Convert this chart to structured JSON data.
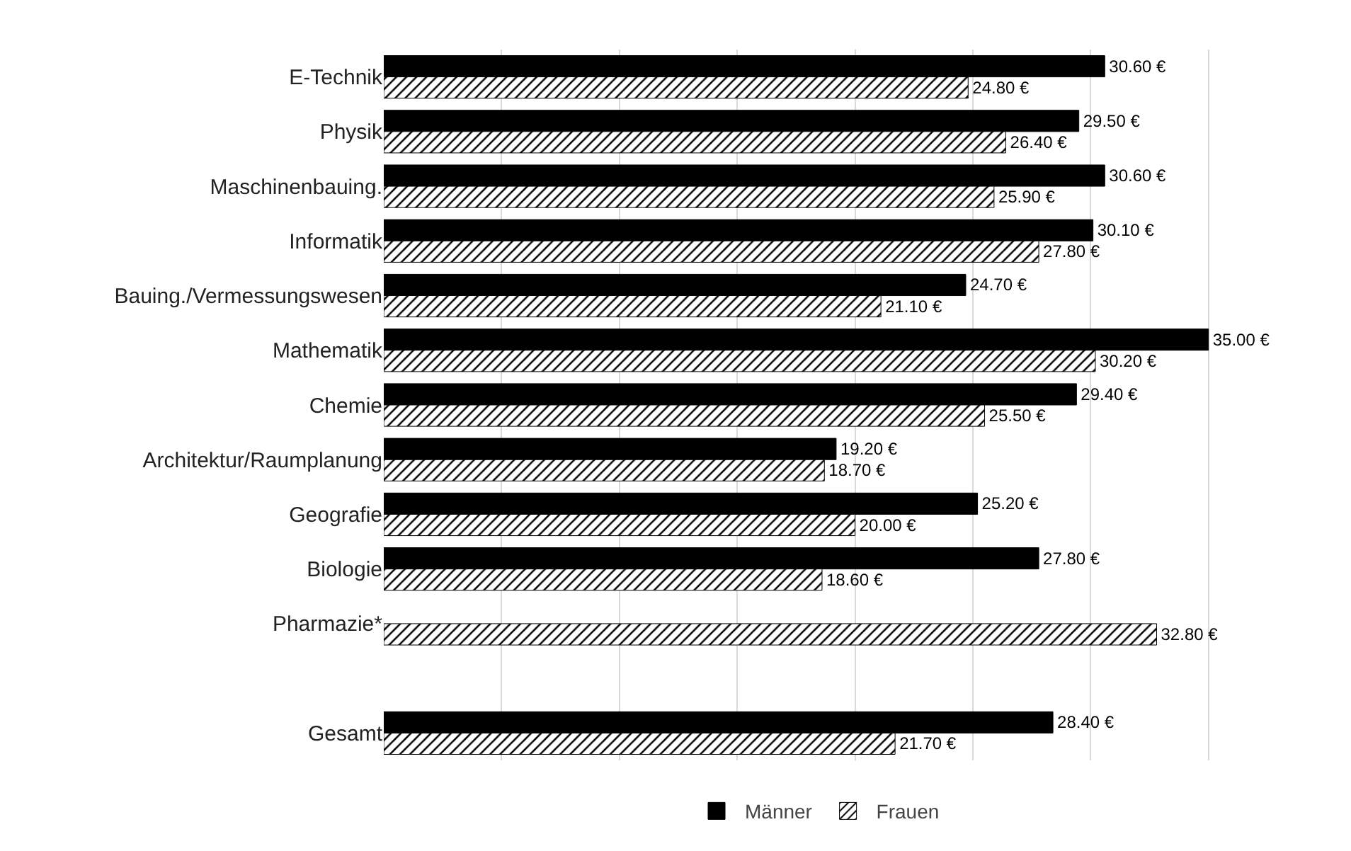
{
  "chart_data": {
    "type": "bar",
    "orientation": "horizontal",
    "categories": [
      "E-Technik",
      "Physik",
      "Maschinenbauing.",
      "Informatik",
      "Bauing./Vermessungswesen",
      "Mathematik",
      "Chemie",
      "Architektur/Raumplanung",
      "Geografie",
      "Biologie",
      "Pharmazie*",
      null,
      "Gesamt"
    ],
    "series": [
      {
        "name": "Männer",
        "color": "#000000",
        "values": [
          30.6,
          29.5,
          30.6,
          30.1,
          24.7,
          35.0,
          29.4,
          19.2,
          25.2,
          27.8,
          null,
          null,
          28.4
        ],
        "value_labels": [
          "30.60 €",
          "29.50 €",
          "30.60 €",
          "30.10 €",
          "24.70 €",
          "35.00 €",
          "29.40 €",
          "19.20 €",
          "25.20 €",
          "27.80 €",
          null,
          null,
          "28.40 €"
        ]
      },
      {
        "name": "Frauen",
        "color": "#000000",
        "values": [
          24.8,
          26.4,
          25.9,
          27.8,
          21.1,
          30.2,
          25.5,
          18.7,
          20.0,
          18.6,
          32.8,
          null,
          21.7
        ],
        "value_labels": [
          "24.80 €",
          "26.40 €",
          "25.90 €",
          "27.80 €",
          "21.10 €",
          "30.20 €",
          "25.50 €",
          "18.70 €",
          "20.00 €",
          "18.60 €",
          "32.80 €",
          null,
          "21.70 €"
        ]
      }
    ],
    "xticks": [
      {
        "value": 5,
        "label": null
      },
      {
        "value": 10,
        "label": null
      },
      {
        "value": 15,
        "label": null
      },
      {
        "value": 20,
        "label": null
      },
      {
        "value": 25,
        "label": null
      },
      {
        "value": 30,
        "label": null
      },
      {
        "value": 35,
        "label": null
      }
    ],
    "tick_labels": "y",
    "grid": "x",
    "legend": "bottom"
  }
}
